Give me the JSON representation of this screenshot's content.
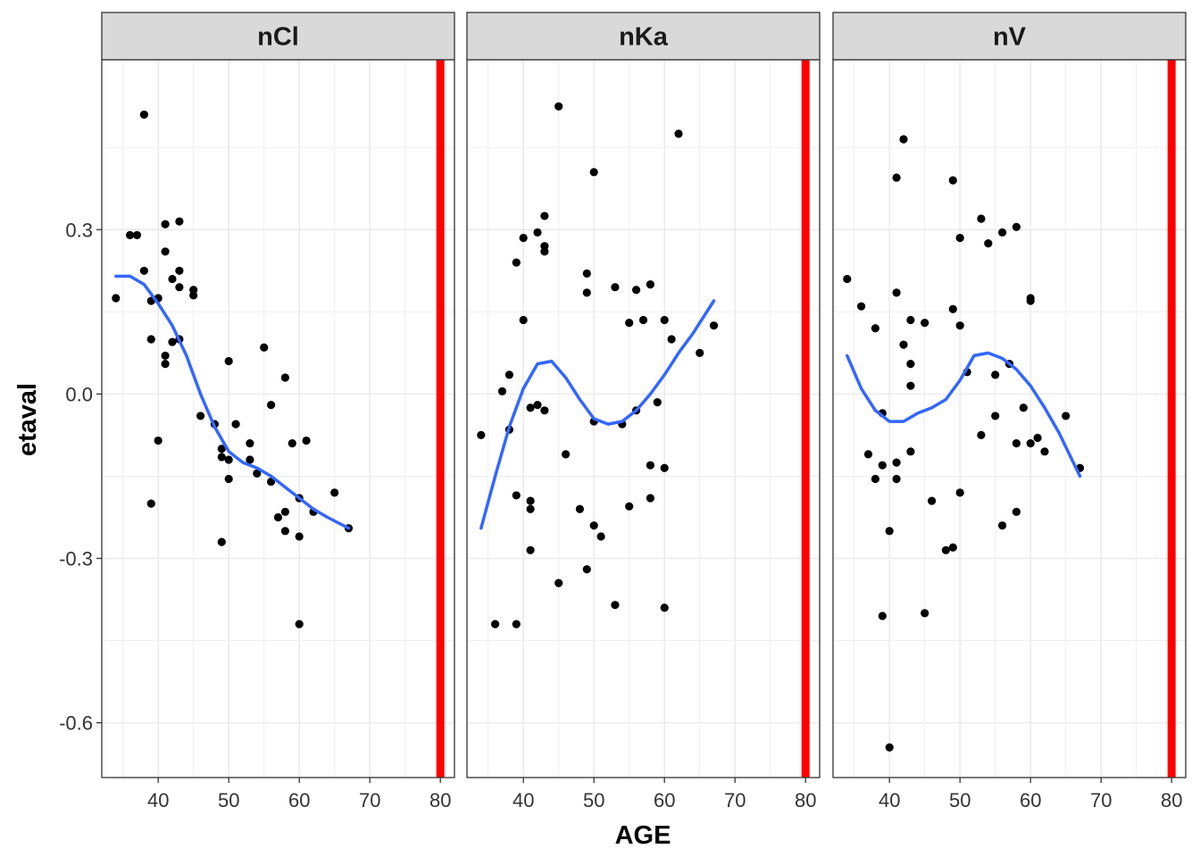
{
  "chart_data": {
    "type": "scatter",
    "xlabel": "AGE",
    "ylabel": "etaval",
    "xlim": [
      32,
      82
    ],
    "ylim": [
      -0.7,
      0.61
    ],
    "x_ticks": [
      40,
      50,
      60,
      70,
      80
    ],
    "x_tick_labels": [
      "40",
      "50",
      "60",
      "70",
      "80"
    ],
    "y_ticks": [
      0.3,
      0.0,
      -0.3,
      -0.6
    ],
    "y_tick_labels": [
      "0.3",
      "0.0",
      "-0.3",
      "-0.6"
    ],
    "reference_line_x": 80,
    "grid": true,
    "colors": {
      "points": "#000000",
      "smooth": "#3366FF",
      "reference_line": "#FF0000",
      "strip_fill": "#D9D9D9",
      "grid": "#EBEBEB"
    },
    "panels": [
      {
        "name": "nCl",
        "points": [
          [
            34,
            0.175
          ],
          [
            36,
            0.29
          ],
          [
            37,
            0.29
          ],
          [
            38,
            0.51
          ],
          [
            38,
            0.225
          ],
          [
            39,
            0.17
          ],
          [
            39,
            0.1
          ],
          [
            39,
            -0.2
          ],
          [
            40,
            0.175
          ],
          [
            40,
            -0.085
          ],
          [
            41,
            0.31
          ],
          [
            41,
            0.26
          ],
          [
            41,
            0.07
          ],
          [
            41,
            0.055
          ],
          [
            42,
            0.21
          ],
          [
            42,
            0.095
          ],
          [
            43,
            0.315
          ],
          [
            43,
            0.225
          ],
          [
            43,
            0.195
          ],
          [
            43,
            0.1
          ],
          [
            45,
            0.19
          ],
          [
            45,
            0.18
          ],
          [
            46,
            -0.04
          ],
          [
            48,
            -0.055
          ],
          [
            49,
            -0.1
          ],
          [
            49,
            -0.115
          ],
          [
            49,
            -0.27
          ],
          [
            50,
            0.06
          ],
          [
            50,
            -0.12
          ],
          [
            50,
            -0.155
          ],
          [
            51,
            -0.055
          ],
          [
            53,
            -0.09
          ],
          [
            53,
            -0.12
          ],
          [
            54,
            -0.145
          ],
          [
            55,
            0.085
          ],
          [
            56,
            -0.02
          ],
          [
            56,
            -0.16
          ],
          [
            57,
            -0.225
          ],
          [
            58,
            0.03
          ],
          [
            58,
            -0.215
          ],
          [
            58,
            -0.25
          ],
          [
            59,
            -0.09
          ],
          [
            60,
            -0.19
          ],
          [
            60,
            -0.26
          ],
          [
            60,
            -0.42
          ],
          [
            61,
            -0.085
          ],
          [
            62,
            -0.215
          ],
          [
            65,
            -0.18
          ],
          [
            67,
            -0.245
          ]
        ],
        "smooth": [
          [
            34,
            0.215
          ],
          [
            36,
            0.215
          ],
          [
            38,
            0.2
          ],
          [
            40,
            0.165
          ],
          [
            42,
            0.125
          ],
          [
            44,
            0.07
          ],
          [
            46,
            0.0
          ],
          [
            48,
            -0.06
          ],
          [
            50,
            -0.105
          ],
          [
            52,
            -0.125
          ],
          [
            54,
            -0.135
          ],
          [
            56,
            -0.15
          ],
          [
            58,
            -0.17
          ],
          [
            60,
            -0.19
          ],
          [
            62,
            -0.21
          ],
          [
            64,
            -0.225
          ],
          [
            67,
            -0.245
          ]
        ]
      },
      {
        "name": "nKa",
        "points": [
          [
            34,
            -0.075
          ],
          [
            36,
            -0.42
          ],
          [
            37,
            0.005
          ],
          [
            38,
            0.035
          ],
          [
            38,
            -0.065
          ],
          [
            39,
            0.24
          ],
          [
            39,
            -0.185
          ],
          [
            39,
            -0.42
          ],
          [
            40,
            0.285
          ],
          [
            40,
            0.135
          ],
          [
            41,
            -0.025
          ],
          [
            41,
            -0.195
          ],
          [
            41,
            -0.21
          ],
          [
            41,
            -0.285
          ],
          [
            42,
            0.295
          ],
          [
            42,
            -0.02
          ],
          [
            43,
            0.325
          ],
          [
            43,
            0.27
          ],
          [
            43,
            0.26
          ],
          [
            43,
            -0.03
          ],
          [
            45,
            0.525
          ],
          [
            45,
            -0.345
          ],
          [
            46,
            -0.11
          ],
          [
            48,
            -0.21
          ],
          [
            49,
            0.22
          ],
          [
            49,
            0.185
          ],
          [
            49,
            -0.32
          ],
          [
            50,
            0.405
          ],
          [
            50,
            -0.05
          ],
          [
            50,
            -0.24
          ],
          [
            51,
            -0.26
          ],
          [
            53,
            0.195
          ],
          [
            53,
            -0.385
          ],
          [
            54,
            -0.055
          ],
          [
            55,
            0.13
          ],
          [
            55,
            -0.205
          ],
          [
            56,
            0.19
          ],
          [
            56,
            -0.03
          ],
          [
            57,
            0.135
          ],
          [
            58,
            0.2
          ],
          [
            58,
            -0.13
          ],
          [
            58,
            -0.19
          ],
          [
            59,
            -0.015
          ],
          [
            60,
            0.135
          ],
          [
            60,
            -0.135
          ],
          [
            60,
            -0.39
          ],
          [
            61,
            0.1
          ],
          [
            62,
            0.475
          ],
          [
            65,
            0.075
          ],
          [
            67,
            0.125
          ]
        ],
        "smooth": [
          [
            34,
            -0.245
          ],
          [
            36,
            -0.15
          ],
          [
            38,
            -0.06
          ],
          [
            40,
            0.01
          ],
          [
            42,
            0.055
          ],
          [
            44,
            0.06
          ],
          [
            46,
            0.03
          ],
          [
            48,
            -0.01
          ],
          [
            50,
            -0.045
          ],
          [
            52,
            -0.055
          ],
          [
            54,
            -0.05
          ],
          [
            56,
            -0.03
          ],
          [
            58,
            0.0
          ],
          [
            60,
            0.035
          ],
          [
            62,
            0.075
          ],
          [
            64,
            0.11
          ],
          [
            67,
            0.17
          ]
        ]
      },
      {
        "name": "nV",
        "points": [
          [
            34,
            0.21
          ],
          [
            36,
            0.16
          ],
          [
            37,
            -0.11
          ],
          [
            38,
            0.12
          ],
          [
            38,
            -0.155
          ],
          [
            39,
            -0.035
          ],
          [
            39,
            -0.13
          ],
          [
            39,
            -0.405
          ],
          [
            40,
            -0.25
          ],
          [
            40,
            -0.645
          ],
          [
            41,
            0.395
          ],
          [
            41,
            0.185
          ],
          [
            41,
            -0.125
          ],
          [
            41,
            -0.155
          ],
          [
            42,
            0.465
          ],
          [
            42,
            0.09
          ],
          [
            43,
            0.135
          ],
          [
            43,
            0.055
          ],
          [
            43,
            0.015
          ],
          [
            43,
            -0.105
          ],
          [
            45,
            0.13
          ],
          [
            45,
            -0.4
          ],
          [
            46,
            -0.195
          ],
          [
            48,
            -0.285
          ],
          [
            49,
            0.39
          ],
          [
            49,
            0.155
          ],
          [
            49,
            -0.28
          ],
          [
            50,
            0.285
          ],
          [
            50,
            0.125
          ],
          [
            50,
            -0.18
          ],
          [
            51,
            0.04
          ],
          [
            53,
            0.32
          ],
          [
            53,
            -0.075
          ],
          [
            54,
            0.275
          ],
          [
            55,
            0.035
          ],
          [
            55,
            -0.04
          ],
          [
            56,
            0.295
          ],
          [
            56,
            -0.24
          ],
          [
            57,
            0.055
          ],
          [
            58,
            0.305
          ],
          [
            58,
            -0.09
          ],
          [
            58,
            -0.215
          ],
          [
            59,
            -0.025
          ],
          [
            60,
            0.175
          ],
          [
            60,
            0.17
          ],
          [
            60,
            -0.09
          ],
          [
            61,
            -0.08
          ],
          [
            62,
            -0.105
          ],
          [
            65,
            -0.04
          ],
          [
            67,
            -0.135
          ]
        ],
        "smooth": [
          [
            34,
            0.07
          ],
          [
            36,
            0.01
          ],
          [
            38,
            -0.03
          ],
          [
            40,
            -0.05
          ],
          [
            42,
            -0.05
          ],
          [
            44,
            -0.035
          ],
          [
            46,
            -0.025
          ],
          [
            48,
            -0.01
          ],
          [
            50,
            0.025
          ],
          [
            52,
            0.07
          ],
          [
            54,
            0.075
          ],
          [
            56,
            0.065
          ],
          [
            58,
            0.045
          ],
          [
            60,
            0.015
          ],
          [
            62,
            -0.025
          ],
          [
            64,
            -0.07
          ],
          [
            67,
            -0.15
          ]
        ]
      }
    ]
  }
}
